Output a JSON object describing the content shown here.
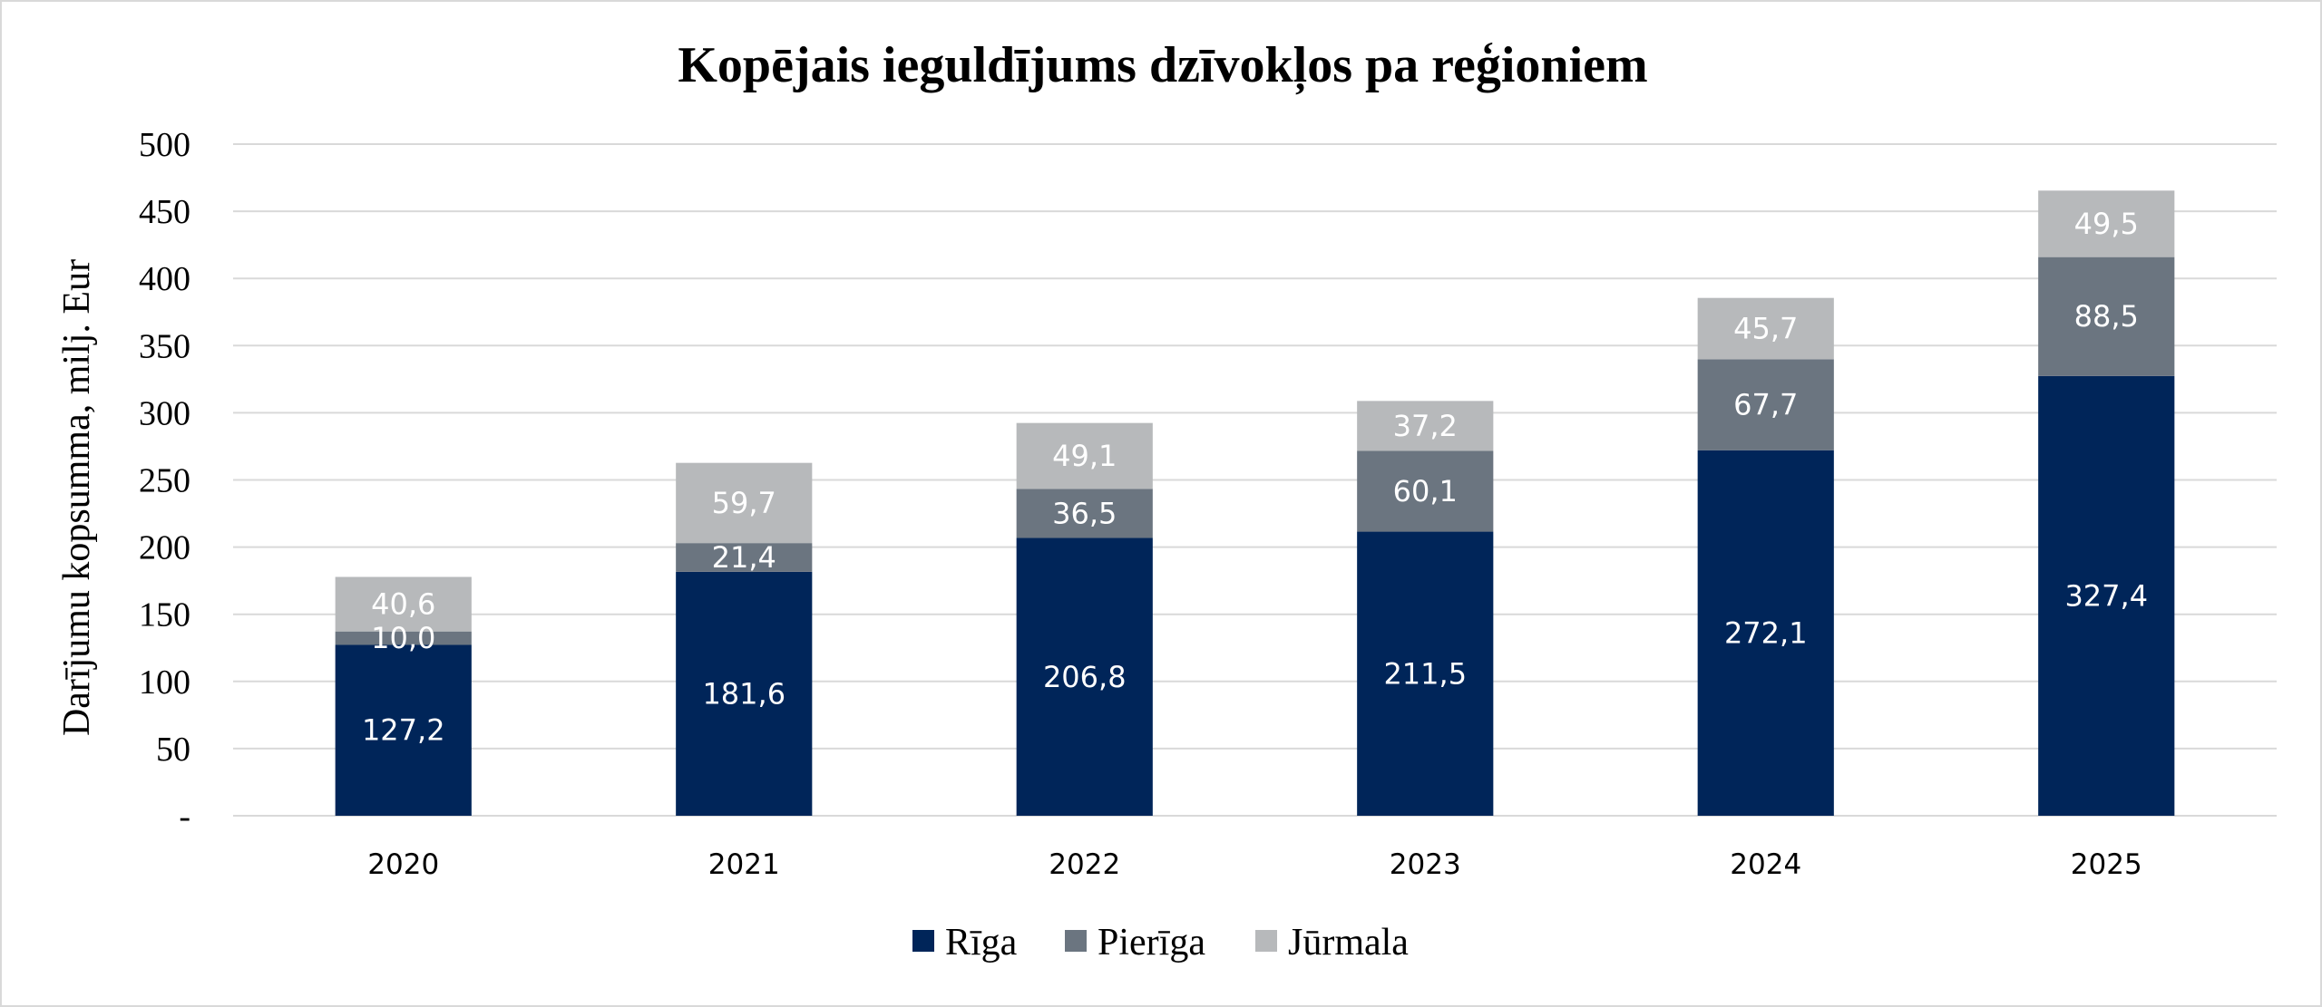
{
  "chart_data": {
    "type": "bar",
    "stacked": true,
    "title": "Kopējais ieguldījums dzīvokļos pa reģioniem",
    "ylabel": "Darījumu kopsumma, milj. Eur",
    "xlabel": "",
    "categories": [
      "2020",
      "2021",
      "2022",
      "2023",
      "2024",
      "2025"
    ],
    "ylim": [
      0,
      500
    ],
    "yticks": [
      0,
      50,
      100,
      150,
      200,
      250,
      300,
      350,
      400,
      450,
      500
    ],
    "ytick_labels": [
      "-",
      "50",
      "100",
      "150",
      "200",
      "250",
      "300",
      "350",
      "400",
      "450",
      "500"
    ],
    "grid": true,
    "legend_position": "bottom",
    "series": [
      {
        "name": "Rīga",
        "color": "#002559",
        "values": [
          127.2,
          181.6,
          206.8,
          211.5,
          272.1,
          327.4
        ],
        "labels": [
          "127,2",
          "181,6",
          "206,8",
          "211,5",
          "272,1",
          "327,4"
        ]
      },
      {
        "name": "Pierīga",
        "color": "#6b7580",
        "values": [
          10.0,
          21.4,
          36.5,
          60.1,
          67.7,
          88.5
        ],
        "labels": [
          "10,0",
          "21,4",
          "36,5",
          "60,1",
          "67,7",
          "88,5"
        ]
      },
      {
        "name": "Jūrmala",
        "color": "#b7b9bb",
        "values": [
          40.6,
          59.7,
          49.1,
          37.2,
          45.7,
          49.5
        ],
        "labels": [
          "40,6",
          "59,7",
          "49,1",
          "37,2",
          "45,7",
          "49,5"
        ]
      }
    ]
  }
}
